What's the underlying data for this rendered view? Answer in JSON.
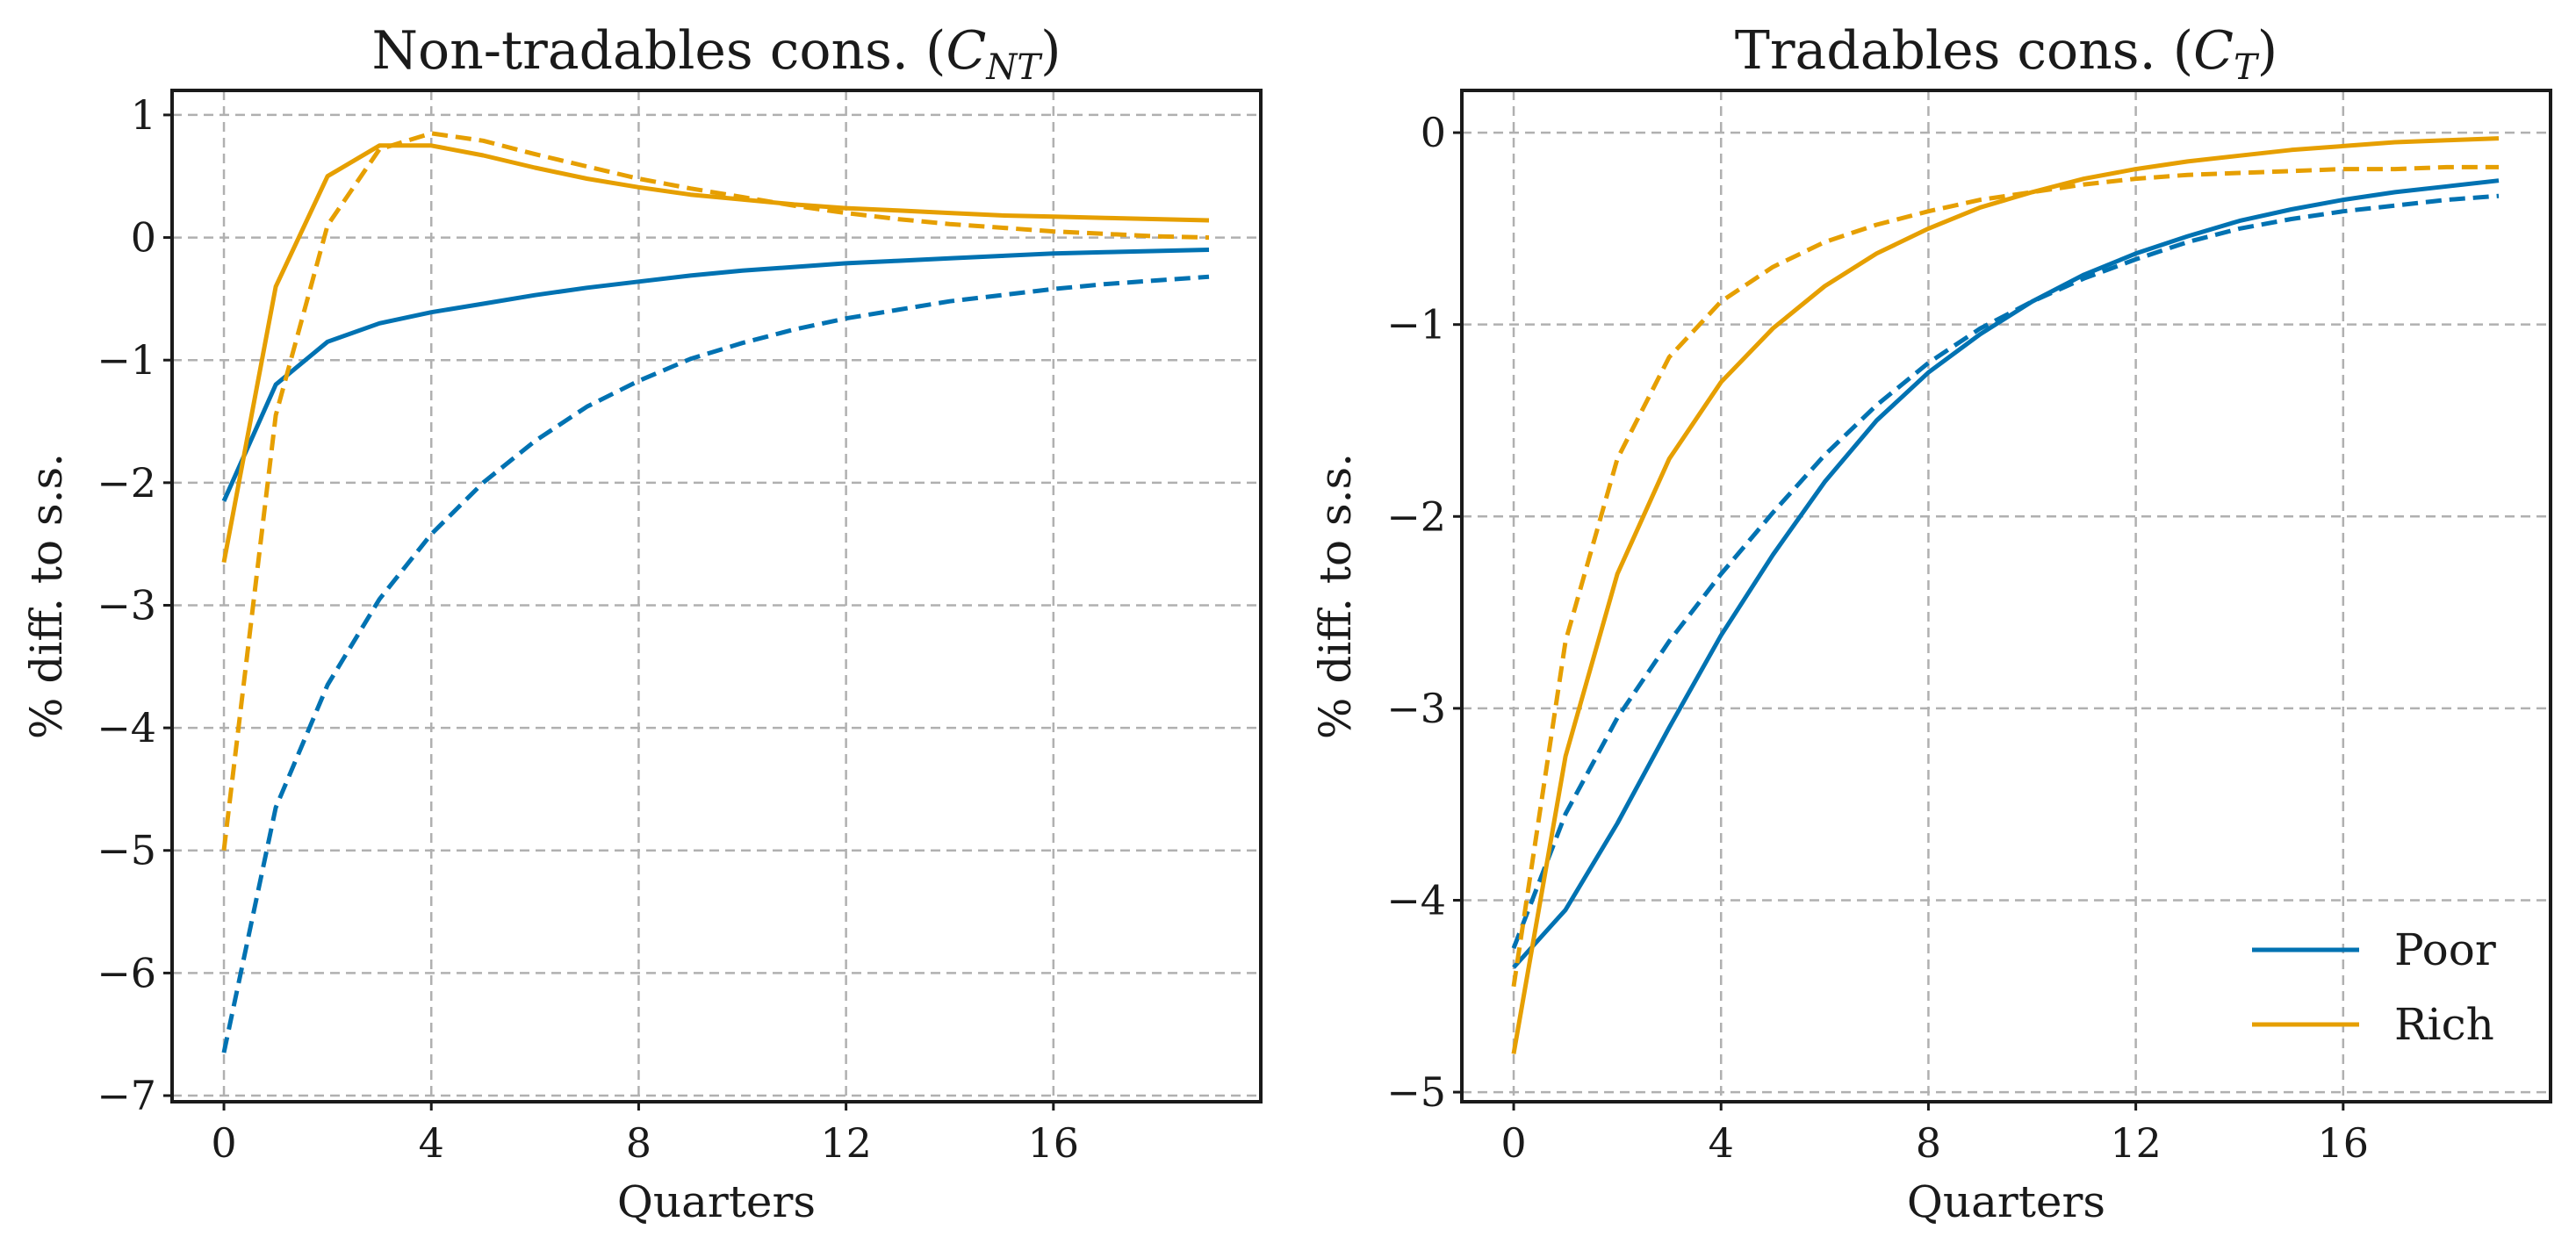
{
  "chart_data": [
    {
      "type": "line",
      "title": "Non-tradables cons. (",
      "title_symbol": "C",
      "title_subscript": "NT",
      "title_close": ")",
      "xlabel": "Quarters",
      "ylabel": "% diff. to s.s.",
      "xlim": [
        -1,
        20
      ],
      "ylim": [
        -7.05,
        1.2
      ],
      "xticks": [
        0,
        4,
        8,
        12,
        16
      ],
      "xtick_labels": [
        "0",
        "4",
        "8",
        "12",
        "16"
      ],
      "yticks": [
        1,
        0,
        -1,
        -2,
        -3,
        -4,
        -5,
        -6,
        -7
      ],
      "ytick_labels": [
        "1",
        "0",
        "−1",
        "−2",
        "−3",
        "−4",
        "−5",
        "−6",
        "−7"
      ],
      "grid": true,
      "x": [
        0,
        1,
        2,
        3,
        4,
        5,
        6,
        7,
        8,
        9,
        10,
        11,
        12,
        13,
        14,
        15,
        16,
        17,
        18,
        19
      ],
      "series": [
        {
          "color": "#0072b2",
          "style": "solid",
          "values": [
            -2.15,
            -1.2,
            -0.85,
            -0.7,
            -0.61,
            -0.54,
            -0.47,
            -0.41,
            -0.36,
            -0.31,
            -0.27,
            -0.24,
            -0.21,
            -0.19,
            -0.17,
            -0.15,
            -0.13,
            -0.12,
            -0.11,
            -0.1
          ]
        },
        {
          "color": "#0072b2",
          "style": "dashed",
          "values": [
            -6.65,
            -4.65,
            -3.65,
            -2.95,
            -2.42,
            -2.0,
            -1.66,
            -1.38,
            -1.17,
            -0.99,
            -0.86,
            -0.75,
            -0.66,
            -0.59,
            -0.52,
            -0.47,
            -0.42,
            -0.38,
            -0.35,
            -0.32
          ]
        },
        {
          "color": "#e69f00",
          "style": "solid",
          "values": [
            -2.65,
            -0.4,
            0.5,
            0.75,
            0.75,
            0.67,
            0.57,
            0.48,
            0.41,
            0.35,
            0.31,
            0.27,
            0.24,
            0.22,
            0.2,
            0.18,
            0.17,
            0.16,
            0.15,
            0.14
          ]
        },
        {
          "color": "#e69f00",
          "style": "dashed",
          "values": [
            -5.0,
            -1.45,
            0.1,
            0.72,
            0.85,
            0.79,
            0.68,
            0.58,
            0.48,
            0.4,
            0.33,
            0.26,
            0.2,
            0.15,
            0.11,
            0.08,
            0.05,
            0.03,
            0.01,
            0.0
          ]
        }
      ]
    },
    {
      "type": "line",
      "title": "Tradables cons. (",
      "title_symbol": "C",
      "title_subscript": "T",
      "title_close": ")",
      "xlabel": "Quarters",
      "ylabel": "% diff. to s.s.",
      "xlim": [
        -1,
        20
      ],
      "ylim": [
        -5.05,
        0.22
      ],
      "xticks": [
        0,
        4,
        8,
        12,
        16
      ],
      "xtick_labels": [
        "0",
        "4",
        "8",
        "12",
        "16"
      ],
      "yticks": [
        0,
        -1,
        -2,
        -3,
        -4,
        -5
      ],
      "ytick_labels": [
        "0",
        "−1",
        "−2",
        "−3",
        "−4",
        "−5"
      ],
      "grid": true,
      "legend": {
        "position": "lower-right",
        "entries": [
          {
            "label": "Poor",
            "color": "#0072b2"
          },
          {
            "label": "Rich",
            "color": "#e69f00"
          }
        ]
      },
      "x": [
        0,
        1,
        2,
        3,
        4,
        5,
        6,
        7,
        8,
        9,
        10,
        11,
        12,
        13,
        14,
        15,
        16,
        17,
        18,
        19
      ],
      "series": [
        {
          "name": "Poor",
          "color": "#0072b2",
          "style": "solid",
          "values": [
            -4.35,
            -4.05,
            -3.6,
            -3.1,
            -2.62,
            -2.2,
            -1.82,
            -1.5,
            -1.25,
            -1.05,
            -0.88,
            -0.74,
            -0.63,
            -0.54,
            -0.46,
            -0.4,
            -0.35,
            -0.31,
            -0.28,
            -0.25
          ]
        },
        {
          "color": "#0072b2",
          "style": "dashed",
          "values": [
            -4.25,
            -3.55,
            -3.05,
            -2.65,
            -2.3,
            -1.98,
            -1.68,
            -1.42,
            -1.2,
            -1.02,
            -0.88,
            -0.76,
            -0.66,
            -0.57,
            -0.5,
            -0.45,
            -0.41,
            -0.38,
            -0.35,
            -0.33
          ]
        },
        {
          "name": "Rich",
          "color": "#e69f00",
          "style": "solid",
          "values": [
            -4.8,
            -3.25,
            -2.3,
            -1.7,
            -1.3,
            -1.02,
            -0.8,
            -0.63,
            -0.5,
            -0.39,
            -0.31,
            -0.24,
            -0.19,
            -0.15,
            -0.12,
            -0.09,
            -0.07,
            -0.05,
            -0.04,
            -0.03
          ]
        },
        {
          "color": "#e69f00",
          "style": "dashed",
          "values": [
            -4.45,
            -2.65,
            -1.7,
            -1.17,
            -0.88,
            -0.7,
            -0.57,
            -0.48,
            -0.41,
            -0.35,
            -0.31,
            -0.27,
            -0.24,
            -0.22,
            -0.21,
            -0.2,
            -0.19,
            -0.19,
            -0.18,
            -0.18
          ]
        }
      ]
    }
  ]
}
